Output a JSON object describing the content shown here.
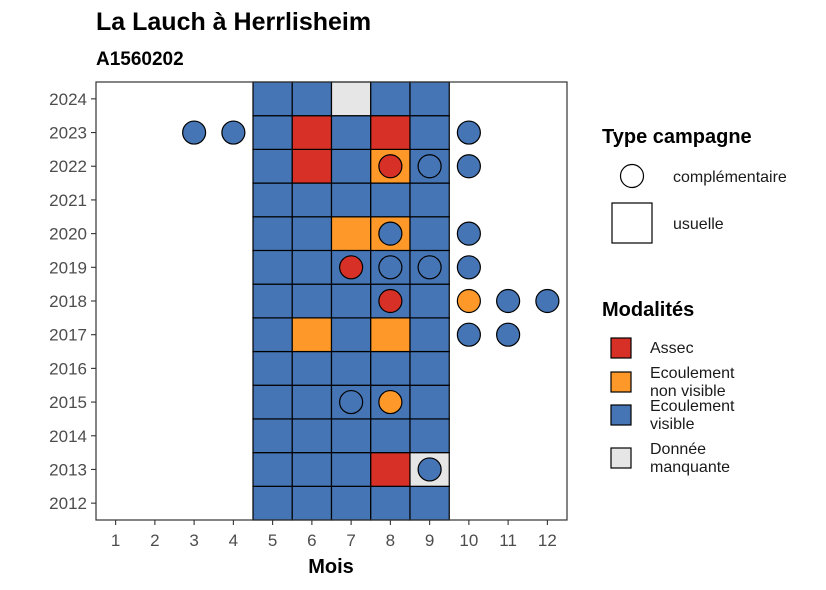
{
  "chart_data": {
    "type": "heatmap",
    "title": "La Lauch à Herrlisheim",
    "subtitle": "A1560202",
    "xlabel": "Mois",
    "ylabel": "",
    "x_ticks": [
      "1",
      "2",
      "3",
      "4",
      "5",
      "6",
      "7",
      "8",
      "9",
      "10",
      "11",
      "12"
    ],
    "y_ticks": [
      "2012",
      "2013",
      "2014",
      "2015",
      "2016",
      "2017",
      "2018",
      "2019",
      "2020",
      "2021",
      "2022",
      "2023",
      "2024"
    ],
    "xlim": [
      0.5,
      12.5
    ],
    "ylim": [
      2011.5,
      2024.5
    ],
    "grid": false,
    "legend_position": "right",
    "colors": {
      "Assec": "#d73027",
      "Ecoulement non visible": "#fe9929",
      "Ecoulement visible": "#4575b4",
      "Donnée manquante": "#e6e6e6"
    },
    "usuelle": {
      "2024": {
        "5": "Ecoulement visible",
        "6": "Ecoulement visible",
        "7": "Donnée manquante",
        "8": "Ecoulement visible",
        "9": "Ecoulement visible"
      },
      "2023": {
        "5": "Ecoulement visible",
        "6": "Assec",
        "7": "Ecoulement visible",
        "8": "Assec",
        "9": "Ecoulement visible"
      },
      "2022": {
        "5": "Ecoulement visible",
        "6": "Assec",
        "7": "Ecoulement visible",
        "8": "Ecoulement non visible",
        "9": "Ecoulement visible"
      },
      "2021": {
        "5": "Ecoulement visible",
        "6": "Ecoulement visible",
        "7": "Ecoulement visible",
        "8": "Ecoulement visible",
        "9": "Ecoulement visible"
      },
      "2020": {
        "5": "Ecoulement visible",
        "6": "Ecoulement visible",
        "7": "Ecoulement non visible",
        "8": "Ecoulement non visible",
        "9": "Ecoulement visible"
      },
      "2019": {
        "5": "Ecoulement visible",
        "6": "Ecoulement visible",
        "7": "Ecoulement visible",
        "8": "Ecoulement visible",
        "9": "Ecoulement visible"
      },
      "2018": {
        "5": "Ecoulement visible",
        "6": "Ecoulement visible",
        "7": "Ecoulement visible",
        "8": "Ecoulement visible",
        "9": "Ecoulement visible"
      },
      "2017": {
        "5": "Ecoulement visible",
        "6": "Ecoulement non visible",
        "7": "Ecoulement visible",
        "8": "Ecoulement non visible",
        "9": "Ecoulement visible"
      },
      "2016": {
        "5": "Ecoulement visible",
        "6": "Ecoulement visible",
        "7": "Ecoulement visible",
        "8": "Ecoulement visible",
        "9": "Ecoulement visible"
      },
      "2015": {
        "5": "Ecoulement visible",
        "6": "Ecoulement visible",
        "7": "Ecoulement visible",
        "8": "Ecoulement visible",
        "9": "Ecoulement visible"
      },
      "2014": {
        "5": "Ecoulement visible",
        "6": "Ecoulement visible",
        "7": "Ecoulement visible",
        "8": "Ecoulement visible",
        "9": "Ecoulement visible"
      },
      "2013": {
        "5": "Ecoulement visible",
        "6": "Ecoulement visible",
        "7": "Ecoulement visible",
        "8": "Assec",
        "9": "Donnée manquante"
      },
      "2012": {
        "5": "Ecoulement visible",
        "6": "Ecoulement visible",
        "7": "Ecoulement visible",
        "8": "Ecoulement visible",
        "9": "Ecoulement visible"
      }
    },
    "complementaire": [
      {
        "year": 2023,
        "month": 3,
        "value": "Ecoulement visible"
      },
      {
        "year": 2023,
        "month": 4,
        "value": "Ecoulement visible"
      },
      {
        "year": 2023,
        "month": 10,
        "value": "Ecoulement visible"
      },
      {
        "year": 2022,
        "month": 8,
        "value": "Assec"
      },
      {
        "year": 2022,
        "month": 9,
        "value": "Ecoulement visible"
      },
      {
        "year": 2022,
        "month": 10,
        "value": "Ecoulement visible"
      },
      {
        "year": 2020,
        "month": 8,
        "value": "Ecoulement visible"
      },
      {
        "year": 2020,
        "month": 10,
        "value": "Ecoulement visible"
      },
      {
        "year": 2019,
        "month": 7,
        "value": "Assec"
      },
      {
        "year": 2019,
        "month": 8,
        "value": "Ecoulement visible"
      },
      {
        "year": 2019,
        "month": 9,
        "value": "Ecoulement visible"
      },
      {
        "year": 2019,
        "month": 10,
        "value": "Ecoulement visible"
      },
      {
        "year": 2018,
        "month": 8,
        "value": "Assec"
      },
      {
        "year": 2018,
        "month": 10,
        "value": "Ecoulement non visible"
      },
      {
        "year": 2018,
        "month": 11,
        "value": "Ecoulement visible"
      },
      {
        "year": 2018,
        "month": 12,
        "value": "Ecoulement visible"
      },
      {
        "year": 2017,
        "month": 10,
        "value": "Ecoulement visible"
      },
      {
        "year": 2017,
        "month": 11,
        "value": "Ecoulement visible"
      },
      {
        "year": 2015,
        "month": 7,
        "value": "Ecoulement visible"
      },
      {
        "year": 2015,
        "month": 8,
        "value": "Ecoulement non visible"
      },
      {
        "year": 2013,
        "month": 9,
        "value": "Ecoulement visible"
      }
    ]
  },
  "legend_type": {
    "title": "Type campagne",
    "items": [
      "complémentaire",
      "usuelle"
    ]
  },
  "legend_modalites": {
    "title": "Modalités",
    "items": [
      {
        "key": "Assec",
        "lines": [
          "Assec"
        ]
      },
      {
        "key": "Ecoulement non visible",
        "lines": [
          "Ecoulement",
          "non visible"
        ]
      },
      {
        "key": "Ecoulement visible",
        "lines": [
          "Ecoulement",
          "visible"
        ]
      },
      {
        "key": "Donnée manquante",
        "lines": [
          "Donnée",
          "manquante"
        ]
      }
    ]
  }
}
